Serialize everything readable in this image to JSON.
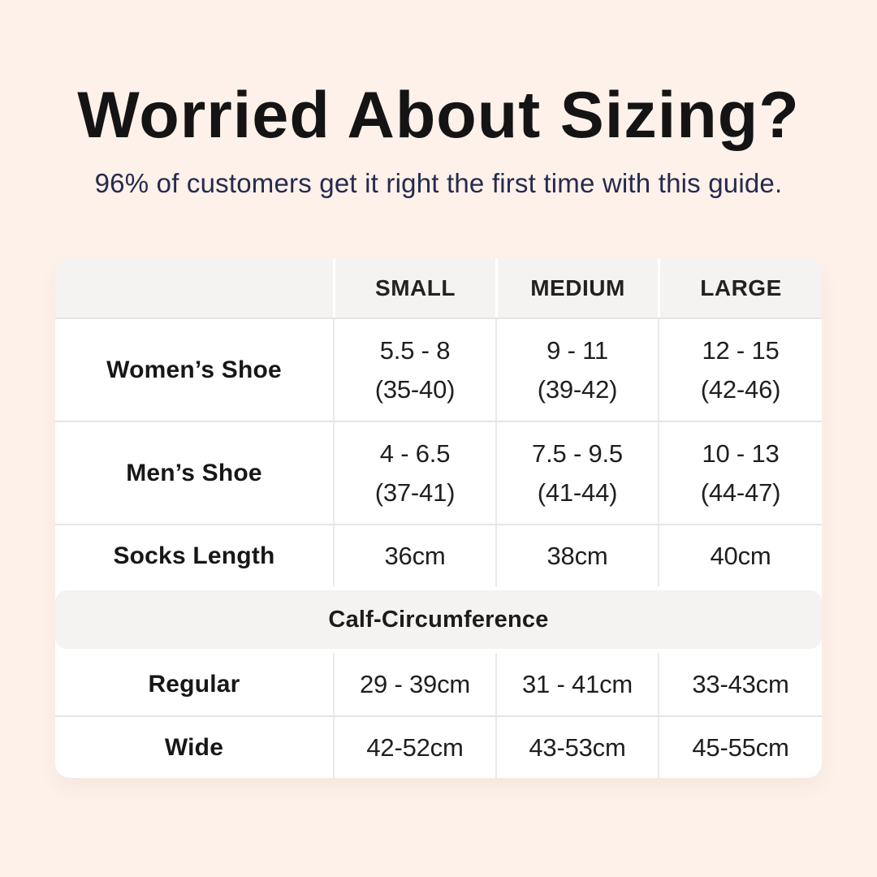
{
  "page": {
    "title": "Worried About Sizing?",
    "subtitle": "96% of customers get it right the first time with this guide."
  },
  "colors": {
    "page_background": "#fdf1e9",
    "card_background": "#ffffff",
    "header_background": "#f4f3f1",
    "divider": "#e7e5e2",
    "title_text": "#141414",
    "subtitle_text": "#252a4e",
    "table_text": "#1b1b1b"
  },
  "table": {
    "columns": [
      "",
      "SMALL",
      "MEDIUM",
      "LARGE"
    ],
    "rows": [
      {
        "label": "Women’s Shoe",
        "values": [
          [
            "5.5 - 8",
            "(35-40)"
          ],
          [
            "9 - 11",
            "(39-42)"
          ],
          [
            "12 - 15",
            "(42-46)"
          ]
        ]
      },
      {
        "label": "Men’s Shoe",
        "values": [
          [
            "4 - 6.5",
            "(37-41)"
          ],
          [
            "7.5 - 9.5",
            "(41-44)"
          ],
          [
            "10 - 13",
            "(44-47)"
          ]
        ]
      },
      {
        "label": "Socks Length",
        "values": [
          [
            "36cm"
          ],
          [
            "38cm"
          ],
          [
            "40cm"
          ]
        ]
      }
    ],
    "section_header": "Calf-Circumference",
    "section_rows": [
      {
        "label": "Regular",
        "values": [
          "29 - 39cm",
          "31 - 41cm",
          "33-43cm"
        ]
      },
      {
        "label": "Wide",
        "values": [
          "42-52cm",
          "43-53cm",
          "45-55cm"
        ]
      }
    ]
  }
}
